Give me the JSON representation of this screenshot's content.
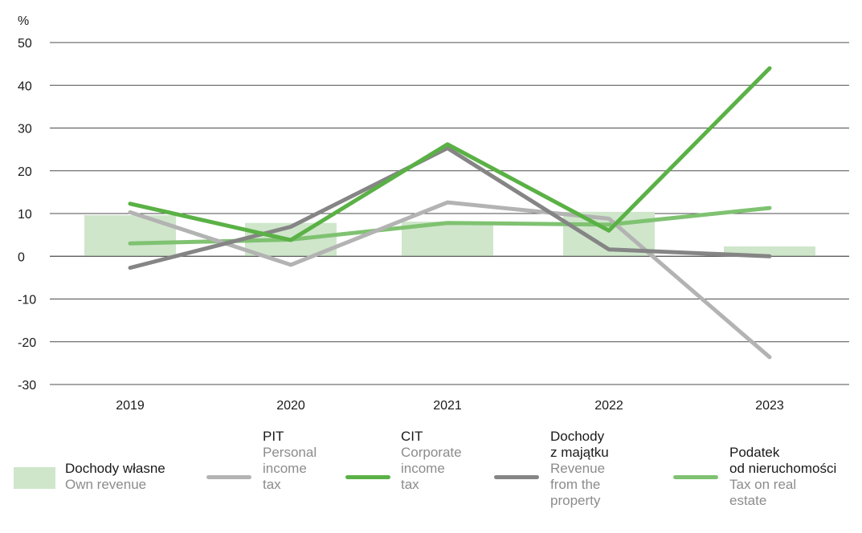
{
  "chart_data": {
    "type": "bar+line",
    "categories": [
      "2019",
      "2020",
      "2021",
      "2022",
      "2023"
    ],
    "unit_label": "%",
    "ylim": [
      -30,
      50
    ],
    "yticks": [
      50,
      40,
      30,
      20,
      10,
      0,
      -10,
      -20,
      -30
    ],
    "grid": true,
    "legend_position": "bottom",
    "bars": {
      "name": "Dochody własne",
      "subname": "Own revenue",
      "color": "#cfe6cb",
      "values": [
        9.6,
        7.8,
        8.1,
        10.4,
        2.3
      ]
    },
    "series": [
      {
        "name": "PIT",
        "subname": "Personal\nincome\ntax",
        "color": "#b3b3b3",
        "values": [
          10.3,
          -2.0,
          12.6,
          8.8,
          -23.6
        ]
      },
      {
        "name": "CIT",
        "subname": "Corporate\nincome\ntax",
        "color": "#5ab145",
        "values": [
          12.3,
          3.8,
          26.2,
          6.0,
          44.0
        ]
      },
      {
        "name": "Dochody\nz majątku",
        "subname": "Revenue\nfrom the\nproperty",
        "color": "#858585",
        "values": [
          -2.7,
          6.9,
          25.3,
          1.6,
          0.0
        ]
      },
      {
        "name": "Podatek\nod nieruchomości",
        "subname": "Tax on real\nestate",
        "color": "#7fc271",
        "values": [
          3.0,
          3.9,
          7.8,
          7.4,
          11.3
        ]
      }
    ]
  }
}
